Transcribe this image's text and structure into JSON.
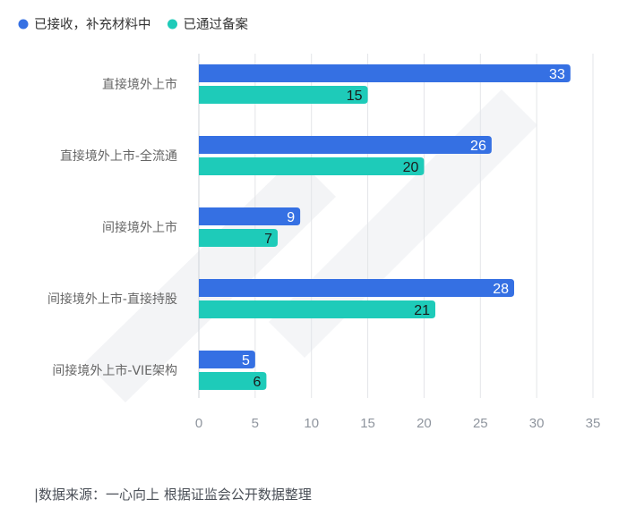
{
  "chart_data": {
    "type": "bar",
    "orientation": "horizontal",
    "categories": [
      "直接境外上市",
      "直接境外上市-全流通",
      "间接境外上市",
      "间接境外上市-直接持股",
      "间接境外上市-VIE架构"
    ],
    "series": [
      {
        "name": "已接收，补充材料中",
        "values": [
          33,
          26,
          9,
          28,
          5
        ],
        "color": "#3570e3",
        "label_color": "#ffffff"
      },
      {
        "name": "已通过备案",
        "values": [
          15,
          20,
          7,
          21,
          6
        ],
        "color": "#1ecbb9",
        "label_color": "#1a1a1a"
      }
    ],
    "x_ticks": [
      0,
      5,
      10,
      15,
      20,
      25,
      30,
      35
    ],
    "xlim": [
      0,
      35
    ],
    "grid": true,
    "legend_position": "top-left",
    "source_note": "|数据来源：一心向上 根据证监会公开数据整理"
  }
}
